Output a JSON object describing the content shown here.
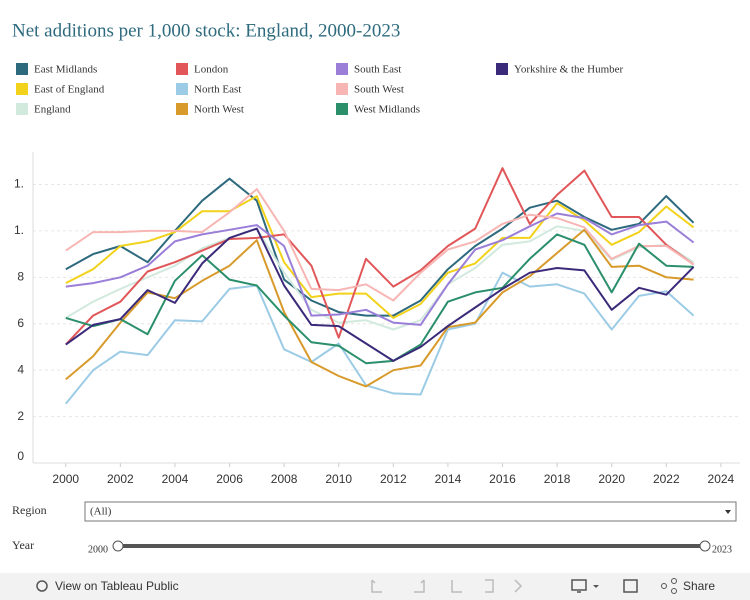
{
  "chart_data": {
    "type": "line",
    "title": "Net additions per 1,000 stock: England, 2000-2023",
    "x": [
      2000,
      2001,
      2002,
      2003,
      2004,
      2005,
      2006,
      2007,
      2008,
      2009,
      2010,
      2011,
      2012,
      2013,
      2014,
      2015,
      2016,
      2017,
      2018,
      2019,
      2020,
      2021,
      2022,
      2023
    ],
    "xlim": [
      1998.8,
      2024.7
    ],
    "xticks": [
      2000,
      2002,
      2004,
      2006,
      2008,
      2010,
      2012,
      2014,
      2016,
      2018,
      2020,
      2022,
      2024
    ],
    "ylim": [
      0,
      13.4
    ],
    "yticks": [
      0,
      2,
      4,
      6,
      8,
      {
        "value": 10,
        "label": "1."
      },
      {
        "value": 12,
        "label": "1."
      }
    ],
    "grid": true,
    "series": [
      {
        "name": "East Midlands",
        "color": "#2e6a7e",
        "values": [
          8.35,
          9.0,
          9.35,
          8.65,
          10.0,
          11.3,
          12.25,
          11.3,
          7.9,
          7.0,
          6.5,
          6.35,
          6.35,
          7.0,
          8.35,
          9.35,
          10.1,
          11.0,
          11.3,
          10.6,
          10.05,
          10.3,
          11.5,
          10.35
        ]
      },
      {
        "name": "East of England",
        "color": "#f2d21a",
        "values": [
          7.75,
          8.35,
          9.35,
          9.55,
          9.95,
          10.85,
          10.85,
          11.5,
          8.65,
          7.15,
          7.3,
          7.3,
          6.25,
          6.85,
          8.2,
          8.6,
          9.7,
          9.7,
          11.2,
          10.45,
          9.4,
          9.95,
          11.05,
          10.15
        ]
      },
      {
        "name": "England",
        "color": "#d2e9de",
        "values": [
          6.25,
          6.95,
          7.5,
          8.0,
          8.5,
          9.25,
          9.7,
          10.1,
          8.2,
          6.6,
          6.05,
          6.15,
          5.75,
          6.15,
          7.7,
          8.4,
          9.4,
          9.55,
          10.2,
          10.0,
          8.75,
          9.3,
          9.4,
          8.65
        ]
      },
      {
        "name": "London",
        "color": "#e15759",
        "values": [
          5.1,
          6.35,
          6.95,
          8.25,
          8.65,
          9.15,
          9.65,
          9.7,
          9.85,
          8.5,
          5.4,
          8.8,
          7.6,
          8.3,
          9.35,
          10.1,
          12.7,
          10.3,
          11.55,
          12.6,
          10.6,
          10.6,
          9.4,
          8.55
        ]
      },
      {
        "name": "North East",
        "color": "#9ccbe5",
        "values": [
          2.55,
          4.0,
          4.8,
          4.65,
          6.15,
          6.1,
          7.5,
          7.65,
          4.9,
          4.35,
          5.15,
          3.35,
          3.0,
          2.95,
          5.75,
          6.0,
          8.2,
          7.6,
          7.7,
          7.3,
          5.75,
          7.2,
          7.4,
          6.35
        ]
      },
      {
        "name": "North West",
        "color": "#d89a2a",
        "values": [
          3.6,
          4.6,
          6.05,
          7.35,
          7.1,
          7.85,
          8.5,
          9.6,
          6.5,
          4.35,
          3.75,
          3.3,
          4.0,
          4.2,
          5.85,
          6.05,
          7.35,
          8.05,
          9.05,
          10.05,
          8.45,
          8.5,
          8.0,
          7.9
        ]
      },
      {
        "name": "South East",
        "color": "#9a7ed8",
        "values": [
          7.6,
          7.75,
          8.0,
          8.5,
          9.55,
          9.85,
          10.05,
          10.25,
          9.35,
          6.35,
          6.4,
          6.6,
          6.05,
          5.95,
          7.7,
          9.2,
          9.6,
          10.2,
          10.75,
          10.55,
          9.85,
          10.25,
          10.4,
          9.5
        ]
      },
      {
        "name": "South West",
        "color": "#f7b6b4",
        "values": [
          9.15,
          9.95,
          9.95,
          10.0,
          10.0,
          9.95,
          10.8,
          11.8,
          10.0,
          7.5,
          7.45,
          7.7,
          7.0,
          8.2,
          9.2,
          9.55,
          10.3,
          10.7,
          10.55,
          10.15,
          8.8,
          9.35,
          9.35,
          8.55
        ]
      },
      {
        "name": "West Midlands",
        "color": "#2a8f6a",
        "values": [
          6.25,
          5.9,
          6.2,
          5.55,
          7.85,
          8.95,
          7.9,
          7.65,
          6.35,
          5.2,
          5.05,
          4.3,
          4.4,
          5.1,
          6.95,
          7.35,
          7.55,
          8.8,
          9.85,
          9.4,
          7.35,
          9.45,
          8.5,
          8.45
        ]
      },
      {
        "name": "Yorkshire & the Humber",
        "color": "#3b2a7a",
        "values": [
          5.1,
          5.95,
          6.2,
          7.45,
          6.9,
          8.6,
          9.7,
          10.1,
          7.65,
          5.95,
          5.9,
          5.15,
          4.4,
          5.0,
          5.9,
          6.7,
          7.5,
          8.2,
          8.4,
          8.3,
          6.6,
          7.55,
          7.25,
          8.45
        ]
      }
    ]
  },
  "ui": {
    "region_label": "Region",
    "region_value": "(All)",
    "year_label": "Year",
    "year_start": 2000,
    "year_end": 2023,
    "view_link": "View on Tableau Public",
    "share": "Share"
  }
}
